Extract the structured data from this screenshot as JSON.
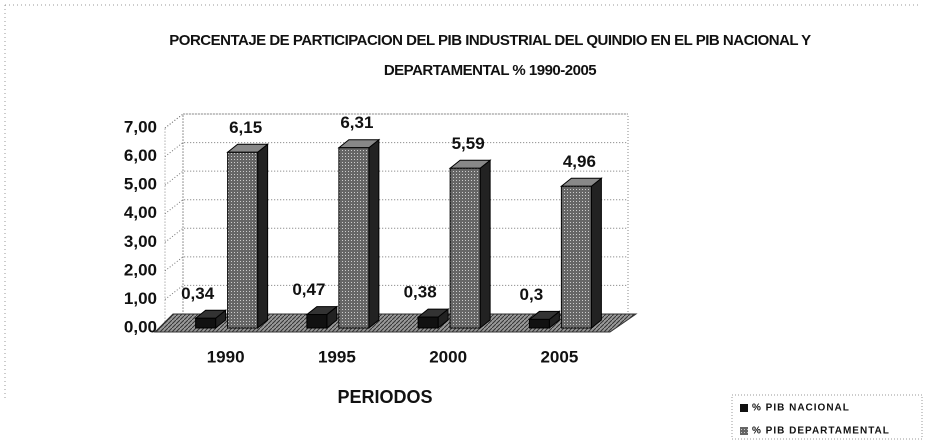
{
  "chart_data": {
    "type": "bar3d",
    "title": "PORCENTAJE DE PARTICIPACION DEL PIB INDUSTRIAL DEL QUINDIO EN EL PIB NACIONAL Y DEPARTAMENTAL % 1990-2005",
    "x_label": "PERIODOS",
    "categories": [
      "1990",
      "1995",
      "2000",
      "2005"
    ],
    "series": [
      {
        "name": "% PIB NACIONAL",
        "color": "#111111",
        "values": [
          0.34,
          0.47,
          0.38,
          0.3
        ],
        "value_labels": [
          "0,34",
          "0,47",
          "0,38",
          "0,3"
        ]
      },
      {
        "name": "% PIB DEPARTAMENTAL",
        "color": "#555555",
        "values": [
          6.15,
          6.31,
          5.59,
          4.96
        ],
        "value_labels": [
          "6,15",
          "6,31",
          "5,59",
          "4,96"
        ]
      }
    ],
    "ylim": [
      0,
      7
    ],
    "yticks": [
      {
        "value": 0,
        "label": "0,00"
      },
      {
        "value": 1,
        "label": "1,00"
      },
      {
        "value": 2,
        "label": "2,00"
      },
      {
        "value": 3,
        "label": "3,00"
      },
      {
        "value": 4,
        "label": "4,00"
      },
      {
        "value": 5,
        "label": "5,00"
      },
      {
        "value": 6,
        "label": "6,00"
      },
      {
        "value": 7,
        "label": "7,00"
      }
    ],
    "grid": true,
    "legend": "bottom-right"
  }
}
